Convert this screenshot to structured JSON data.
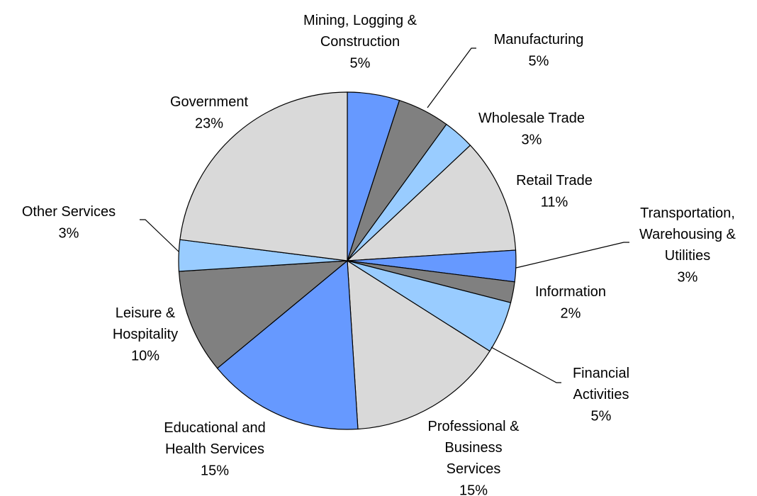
{
  "chart_data": {
    "type": "pie",
    "categories": [
      "Mining, Logging &\nConstruction",
      "Manufacturing",
      "Wholesale Trade",
      "Retail Trade",
      "Transportation,\nWarehousing &\nUtilities",
      "Information",
      "Financial\nActivities",
      "Professional &\nBusiness\nServices",
      "Educational and\nHealth Services",
      "Leisure &\nHospitality",
      "Other Services",
      "Government"
    ],
    "values": [
      5,
      5,
      3,
      11,
      3,
      2,
      5,
      15,
      15,
      10,
      3,
      23
    ],
    "value_labels": [
      "5%",
      "5%",
      "3%",
      "11%",
      "3%",
      "2%",
      "5%",
      "15%",
      "15%",
      "10%",
      "3%",
      "23%"
    ],
    "colors": [
      "#6699ff",
      "#808080",
      "#99ccff",
      "#d9d9d9",
      "#6699ff",
      "#808080",
      "#99ccff",
      "#d9d9d9",
      "#6699ff",
      "#808080",
      "#99ccff",
      "#d9d9d9"
    ]
  }
}
